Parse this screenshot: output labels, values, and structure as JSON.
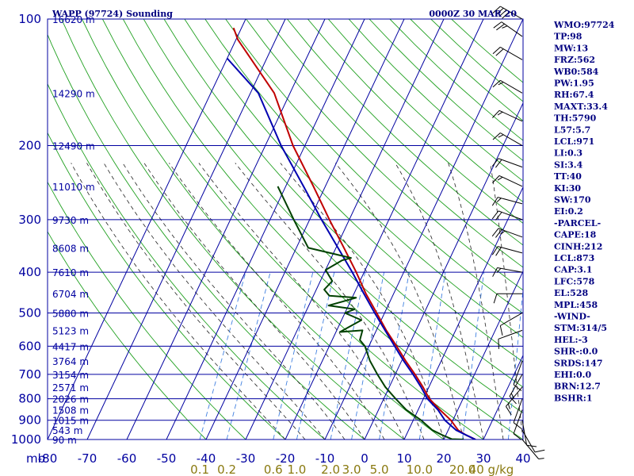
{
  "header": {
    "title": "WAPP (97724) Sounding",
    "time": "0000Z 30 MAR 20"
  },
  "chart_data": {
    "type": "line",
    "title": "WAPP (97724) Sounding",
    "xlabel": "",
    "ylabel": "mb",
    "xlim": [
      -80,
      0
    ],
    "pressure_axis": {
      "scale": "log",
      "range": [
        100,
        1000
      ],
      "reversed": true
    },
    "pressure_ticks": [
      100,
      200,
      300,
      400,
      500,
      600,
      700,
      800,
      900,
      1000
    ],
    "temp_ticks": [
      -80,
      -70,
      -60,
      -50,
      -40,
      -30,
      -20,
      -10,
      0,
      10,
      20,
      30,
      40
    ],
    "temp_tick_labels": [
      "-80",
      "-70",
      "-60",
      "-50",
      "-40",
      "-30",
      "-20",
      "-10",
      "0",
      "10",
      "20",
      "30",
      "40"
    ],
    "mb_label": "mb",
    "mixing_ratio_labels": [
      "0.1",
      "0.2",
      "0.6",
      "1.0",
      "2.0",
      "3.0",
      "5.0",
      "10.0",
      "20.0",
      "40 g/kg"
    ],
    "mixing_ratio_values": [
      0.1,
      0.2,
      0.6,
      1.0,
      2.0,
      3.0,
      5.0,
      10.0,
      20.0,
      40.0
    ],
    "height_labels": [
      {
        "p": 100,
        "label": "16620 m"
      },
      {
        "p": 150,
        "label": "14290 m"
      },
      {
        "p": 200,
        "label": "12490 m"
      },
      {
        "p": 250,
        "label": "11010 m"
      },
      {
        "p": 300,
        "label": "9730 m"
      },
      {
        "p": 350,
        "label": "8608 m"
      },
      {
        "p": 400,
        "label": "7610 m"
      },
      {
        "p": 450,
        "label": "6704 m"
      },
      {
        "p": 500,
        "label": "5880 m"
      },
      {
        "p": 550,
        "label": "5123 m"
      },
      {
        "p": 600,
        "label": "4417 m"
      },
      {
        "p": 650,
        "label": "3764 m"
      },
      {
        "p": 700,
        "label": "3154 m"
      },
      {
        "p": 750,
        "label": "2571 m"
      },
      {
        "p": 800,
        "label": "2026 m"
      },
      {
        "p": 850,
        "label": "1508 m"
      },
      {
        "p": 900,
        "label": "1015 m"
      },
      {
        "p": 950,
        "label": "543 m"
      },
      {
        "p": 1000,
        "label": "90 m"
      }
    ],
    "series": [
      {
        "name": "Parcel",
        "color": "#c00000",
        "points": [
          [
            28.0,
            1000
          ],
          [
            25.0,
            975
          ],
          [
            22.5,
            950
          ],
          [
            19.5,
            900
          ],
          [
            15.5,
            850
          ],
          [
            11.5,
            800
          ],
          [
            8.5,
            750
          ],
          [
            5.0,
            700
          ],
          [
            1.0,
            650
          ],
          [
            -3.0,
            600
          ],
          [
            -7.5,
            550
          ],
          [
            -12.0,
            500
          ],
          [
            -17.0,
            450
          ],
          [
            -22.0,
            400
          ],
          [
            -28.0,
            350
          ],
          [
            -35.0,
            300
          ],
          [
            -43.0,
            250
          ],
          [
            -53.0,
            200
          ],
          [
            -64.0,
            150
          ],
          [
            -79.5,
            112
          ],
          [
            -82.0,
            105
          ]
        ]
      },
      {
        "name": "Temperature",
        "color": "#0000b0",
        "points": [
          [
            28.0,
            1000
          ],
          [
            25.0,
            975
          ],
          [
            22.0,
            950
          ],
          [
            18.0,
            900
          ],
          [
            15.0,
            850
          ],
          [
            11.0,
            800
          ],
          [
            8.0,
            750
          ],
          [
            4.5,
            700
          ],
          [
            0.5,
            650
          ],
          [
            -3.5,
            600
          ],
          [
            -7.8,
            550
          ],
          [
            -12.5,
            500
          ],
          [
            -17.5,
            450
          ],
          [
            -23.0,
            400
          ],
          [
            -29.5,
            350
          ],
          [
            -37.0,
            300
          ],
          [
            -45.5,
            250
          ],
          [
            -56.0,
            200
          ],
          [
            -68.0,
            150
          ],
          [
            -80.0,
            124
          ]
        ]
      },
      {
        "name": "Dewpoint",
        "color": "#004000",
        "points": [
          [
            25.0,
            1000
          ],
          [
            22.0,
            998
          ],
          [
            19.0,
            975
          ],
          [
            16.0,
            950
          ],
          [
            12.0,
            900
          ],
          [
            7.0,
            850
          ],
          [
            3.0,
            800
          ],
          [
            -1.0,
            750
          ],
          [
            -4.5,
            700
          ],
          [
            -8.0,
            650
          ],
          [
            -11.0,
            600
          ],
          [
            -13.0,
            580
          ],
          [
            -13.5,
            550
          ],
          [
            -19.0,
            555
          ],
          [
            -15.0,
            520
          ],
          [
            -20.0,
            500
          ],
          [
            -18.0,
            490
          ],
          [
            -25.0,
            480
          ],
          [
            -19.0,
            460
          ],
          [
            -26.0,
            455
          ],
          [
            -28.0,
            440
          ],
          [
            -27.0,
            420
          ],
          [
            -30.0,
            395
          ],
          [
            -27.0,
            375
          ],
          [
            -25.0,
            370
          ],
          [
            -37.0,
            350
          ],
          [
            -44.0,
            300
          ],
          [
            -52.0,
            250
          ]
        ]
      }
    ]
  },
  "wind_barbs": [
    {
      "p": 100,
      "dir": 300,
      "spd": 40
    },
    {
      "p": 110,
      "dir": 305,
      "spd": 25
    },
    {
      "p": 125,
      "dir": 300,
      "spd": 20
    },
    {
      "p": 150,
      "dir": 300,
      "spd": 15
    },
    {
      "p": 175,
      "dir": 295,
      "spd": 15
    },
    {
      "p": 200,
      "dir": 300,
      "spd": 15
    },
    {
      "p": 225,
      "dir": 290,
      "spd": 20
    },
    {
      "p": 250,
      "dir": 295,
      "spd": 15
    },
    {
      "p": 275,
      "dir": 285,
      "spd": 15
    },
    {
      "p": 300,
      "dir": 290,
      "spd": 20
    },
    {
      "p": 330,
      "dir": 290,
      "spd": 25
    },
    {
      "p": 360,
      "dir": 285,
      "spd": 20
    },
    {
      "p": 400,
      "dir": 280,
      "spd": 15
    },
    {
      "p": 450,
      "dir": 270,
      "spd": 10
    },
    {
      "p": 500,
      "dir": 240,
      "spd": 10
    },
    {
      "p": 550,
      "dir": 250,
      "spd": 10
    },
    {
      "p": 650,
      "dir": 200,
      "spd": 10
    },
    {
      "p": 700,
      "dir": 210,
      "spd": 15
    },
    {
      "p": 750,
      "dir": 220,
      "spd": 15
    },
    {
      "p": 800,
      "dir": 200,
      "spd": 10
    },
    {
      "p": 850,
      "dir": 200,
      "spd": 10
    },
    {
      "p": 900,
      "dir": 170,
      "spd": 10
    },
    {
      "p": 950,
      "dir": 150,
      "spd": 10
    },
    {
      "p": 1000,
      "dir": 140,
      "spd": 5
    }
  ],
  "indices": [
    "WMO:97724",
    "TP:98",
    "MW:13",
    "FRZ:562",
    "WB0:584",
    "PW:1.95",
    "RH:67.4",
    "MAXT:33.4",
    "TH:5790",
    "L57:5.7",
    "LCL:971",
    "LI:0.3",
    "SI:3.4",
    "TT:40",
    "KI:30",
    "SW:170",
    "EI:0.2",
    "-PARCEL-",
    "CAPE:18",
    "CINH:212",
    "LCL:873",
    "CAP:3.1",
    "LFC:578",
    "EL:528",
    "MPL:458",
    "-WIND-",
    "STM:314/5",
    "HEL:-3",
    "SHR-:0.0",
    "SRDS:147",
    "EHI:0.0",
    "BRN:12.7",
    "BSHR:1"
  ]
}
